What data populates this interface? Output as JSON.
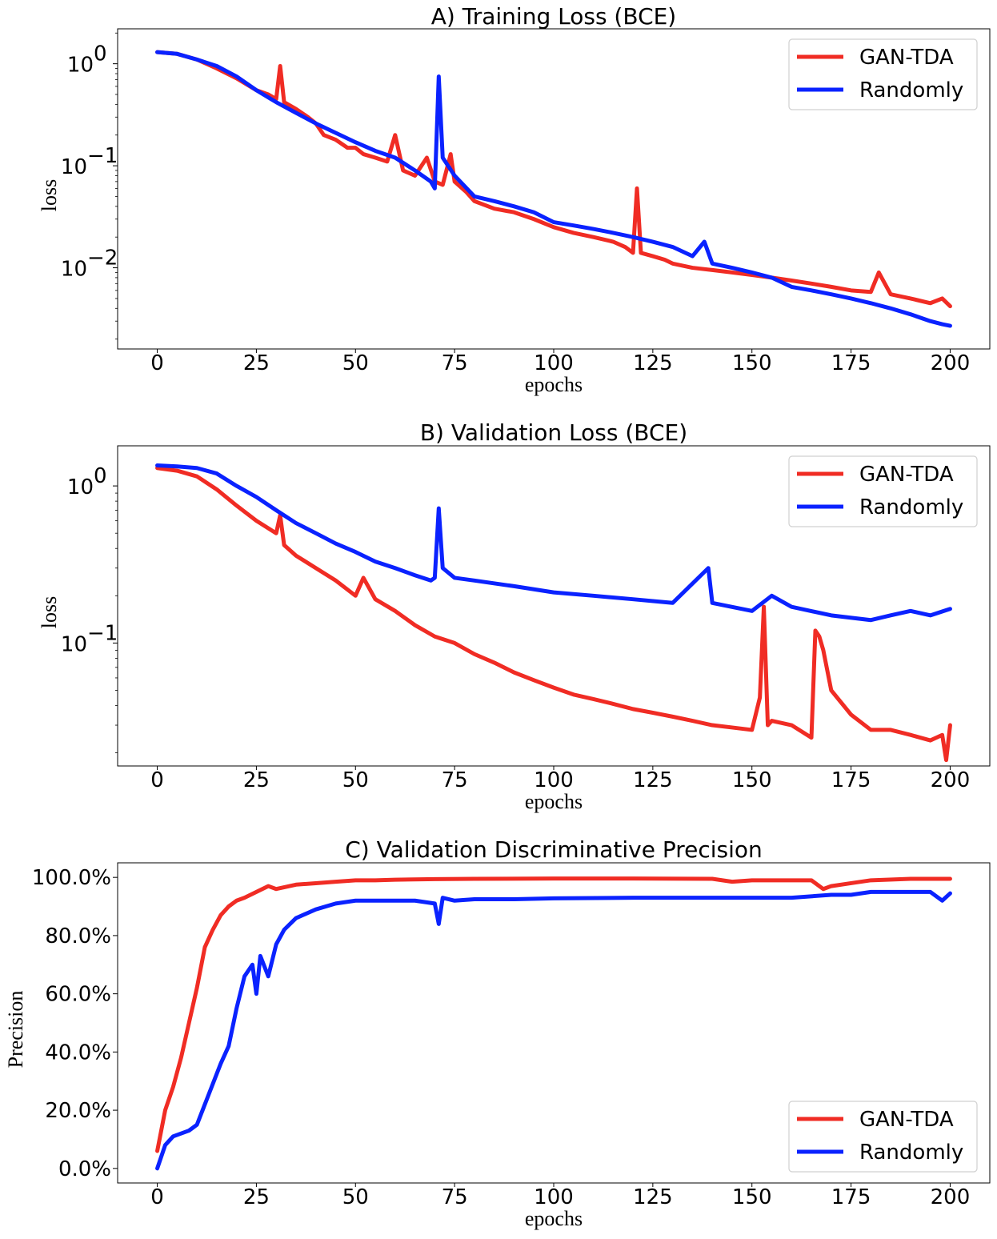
{
  "colors": {
    "GAN-TDA": "#f02c24",
    "Randomly": "#0a22ff"
  },
  "chart_data": [
    {
      "type": "line",
      "title": "A) Training Loss (BCE)",
      "xlabel": "epochs",
      "ylabel": "loss",
      "yscale": "log",
      "xlim": [
        -10,
        210
      ],
      "ylim": [
        0.0016,
        2.2
      ],
      "xticks": [
        "0",
        "25",
        "50",
        "75",
        "100",
        "125",
        "150",
        "175",
        "200"
      ],
      "yticks": [
        {
          "base": "10",
          "exp": "0",
          "value": 1
        },
        {
          "base": "10",
          "exp": "−1",
          "value": 0.1
        },
        {
          "base": "10",
          "exp": "−2",
          "value": 0.01
        }
      ],
      "legend": [
        "GAN-TDA",
        "Randomly"
      ],
      "legend_position": "top-right",
      "series": [
        {
          "name": "GAN-TDA",
          "x": [
            0,
            5,
            10,
            15,
            20,
            25,
            28,
            30,
            31,
            32,
            35,
            38,
            40,
            42,
            45,
            48,
            50,
            52,
            55,
            58,
            60,
            62,
            65,
            68,
            70,
            72,
            74,
            75,
            78,
            80,
            85,
            90,
            95,
            100,
            105,
            110,
            115,
            118,
            120,
            121,
            122,
            125,
            128,
            130,
            135,
            140,
            145,
            150,
            155,
            160,
            165,
            170,
            175,
            180,
            182,
            185,
            190,
            195,
            198,
            200
          ],
          "y": [
            1.3,
            1.25,
            1.1,
            0.9,
            0.72,
            0.55,
            0.5,
            0.45,
            0.95,
            0.42,
            0.36,
            0.3,
            0.26,
            0.2,
            0.18,
            0.15,
            0.15,
            0.13,
            0.12,
            0.11,
            0.2,
            0.09,
            0.08,
            0.12,
            0.07,
            0.065,
            0.13,
            0.07,
            0.055,
            0.045,
            0.038,
            0.035,
            0.03,
            0.025,
            0.022,
            0.02,
            0.018,
            0.016,
            0.014,
            0.06,
            0.014,
            0.013,
            0.012,
            0.011,
            0.01,
            0.0095,
            0.009,
            0.0085,
            0.008,
            0.0075,
            0.007,
            0.0065,
            0.006,
            0.0058,
            0.009,
            0.0055,
            0.005,
            0.0045,
            0.005,
            0.0042
          ]
        },
        {
          "name": "Randomly",
          "x": [
            0,
            5,
            10,
            15,
            20,
            25,
            30,
            35,
            40,
            45,
            50,
            55,
            60,
            65,
            69,
            70,
            71,
            72,
            75,
            80,
            85,
            90,
            95,
            100,
            105,
            110,
            115,
            120,
            125,
            130,
            135,
            138,
            140,
            145,
            150,
            155,
            160,
            165,
            170,
            175,
            180,
            185,
            190,
            195,
            198,
            200
          ],
          "y": [
            1.3,
            1.25,
            1.1,
            0.95,
            0.75,
            0.55,
            0.42,
            0.33,
            0.26,
            0.21,
            0.17,
            0.14,
            0.12,
            0.09,
            0.07,
            0.06,
            0.75,
            0.12,
            0.08,
            0.05,
            0.045,
            0.04,
            0.035,
            0.028,
            0.026,
            0.024,
            0.022,
            0.02,
            0.018,
            0.016,
            0.013,
            0.018,
            0.011,
            0.01,
            0.009,
            0.008,
            0.0065,
            0.006,
            0.0055,
            0.005,
            0.0045,
            0.004,
            0.0035,
            0.003,
            0.0028,
            0.0027
          ]
        }
      ]
    },
    {
      "type": "line",
      "title": "B) Validation Loss (BCE)",
      "xlabel": "epochs",
      "ylabel": "loss",
      "yscale": "log",
      "xlim": [
        -10,
        210
      ],
      "ylim": [
        0.0165,
        1.8
      ],
      "xticks": [
        "0",
        "25",
        "50",
        "75",
        "100",
        "125",
        "150",
        "175",
        "200"
      ],
      "yticks": [
        {
          "base": "10",
          "exp": "0",
          "value": 1
        },
        {
          "base": "10",
          "exp": "−1",
          "value": 0.1
        }
      ],
      "legend": [
        "GAN-TDA",
        "Randomly"
      ],
      "legend_position": "top-right",
      "series": [
        {
          "name": "GAN-TDA",
          "x": [
            0,
            5,
            10,
            15,
            20,
            25,
            30,
            31,
            32,
            35,
            40,
            45,
            50,
            52,
            55,
            60,
            65,
            70,
            75,
            80,
            85,
            90,
            95,
            100,
            105,
            110,
            115,
            120,
            125,
            130,
            135,
            140,
            145,
            150,
            152,
            153,
            154,
            155,
            160,
            165,
            166,
            167,
            168,
            170,
            175,
            180,
            185,
            190,
            195,
            198,
            199,
            200
          ],
          "y": [
            1.3,
            1.25,
            1.15,
            0.95,
            0.75,
            0.6,
            0.5,
            0.65,
            0.42,
            0.36,
            0.3,
            0.25,
            0.2,
            0.26,
            0.19,
            0.16,
            0.13,
            0.11,
            0.1,
            0.085,
            0.075,
            0.065,
            0.058,
            0.052,
            0.047,
            0.044,
            0.041,
            0.038,
            0.036,
            0.034,
            0.032,
            0.03,
            0.029,
            0.028,
            0.045,
            0.17,
            0.03,
            0.032,
            0.03,
            0.025,
            0.12,
            0.11,
            0.09,
            0.05,
            0.035,
            0.028,
            0.028,
            0.026,
            0.024,
            0.026,
            0.018,
            0.03
          ]
        },
        {
          "name": "Randomly",
          "x": [
            0,
            5,
            10,
            15,
            20,
            25,
            30,
            35,
            40,
            45,
            50,
            55,
            60,
            65,
            69,
            70,
            71,
            72,
            75,
            80,
            90,
            100,
            110,
            120,
            130,
            139,
            140,
            150,
            155,
            160,
            170,
            180,
            185,
            190,
            195,
            200
          ],
          "y": [
            1.35,
            1.33,
            1.3,
            1.2,
            1.0,
            0.85,
            0.7,
            0.58,
            0.5,
            0.43,
            0.38,
            0.33,
            0.3,
            0.27,
            0.25,
            0.26,
            0.72,
            0.3,
            0.26,
            0.25,
            0.23,
            0.21,
            0.2,
            0.19,
            0.18,
            0.3,
            0.18,
            0.16,
            0.2,
            0.17,
            0.15,
            0.14,
            0.15,
            0.16,
            0.15,
            0.165
          ]
        }
      ]
    },
    {
      "type": "line",
      "title": "C) Validation Discriminative Precision",
      "xlabel": "epochs",
      "ylabel": "Precision",
      "yscale": "linear",
      "xlim": [
        -10,
        210
      ],
      "ylim": [
        -5,
        105
      ],
      "xticks": [
        "0",
        "25",
        "50",
        "75",
        "100",
        "125",
        "150",
        "175",
        "200"
      ],
      "yticks": [
        {
          "label": "0.0%",
          "value": 0
        },
        {
          "label": "20.0%",
          "value": 20
        },
        {
          "label": "40.0%",
          "value": 40
        },
        {
          "label": "60.0%",
          "value": 60
        },
        {
          "label": "80.0%",
          "value": 80
        },
        {
          "label": "100.0%",
          "value": 100
        }
      ],
      "legend": [
        "GAN-TDA",
        "Randomly"
      ],
      "legend_position": "bottom-right",
      "series": [
        {
          "name": "GAN-TDA",
          "x": [
            0,
            2,
            4,
            6,
            8,
            10,
            12,
            14,
            16,
            18,
            20,
            22,
            25,
            28,
            30,
            35,
            40,
            45,
            50,
            55,
            60,
            70,
            80,
            100,
            120,
            140,
            145,
            150,
            160,
            165,
            168,
            170,
            175,
            180,
            190,
            200
          ],
          "y": [
            6,
            20,
            28,
            38,
            50,
            62,
            76,
            82,
            87,
            90,
            92,
            93,
            95,
            97,
            96,
            97.5,
            98,
            98.5,
            99,
            99,
            99.2,
            99.4,
            99.5,
            99.6,
            99.6,
            99.5,
            98.5,
            99,
            99,
            99,
            96,
            97,
            98,
            99,
            99.5,
            99.5
          ]
        },
        {
          "name": "Randomly",
          "x": [
            0,
            2,
            4,
            6,
            8,
            10,
            12,
            14,
            16,
            18,
            20,
            22,
            24,
            25,
            26,
            28,
            30,
            32,
            35,
            40,
            45,
            50,
            55,
            60,
            65,
            70,
            71,
            72,
            75,
            80,
            90,
            100,
            120,
            140,
            160,
            170,
            175,
            180,
            185,
            190,
            195,
            198,
            200
          ],
          "y": [
            0,
            8,
            11,
            12,
            13,
            15,
            22,
            29,
            36,
            42,
            55,
            66,
            70,
            60,
            73,
            66,
            77,
            82,
            86,
            89,
            91,
            92,
            92,
            92,
            92,
            91,
            84,
            93,
            92,
            92.5,
            92.5,
            92.8,
            93,
            93,
            93,
            94,
            94,
            95,
            95,
            95,
            95,
            92,
            94.5
          ]
        }
      ]
    }
  ]
}
